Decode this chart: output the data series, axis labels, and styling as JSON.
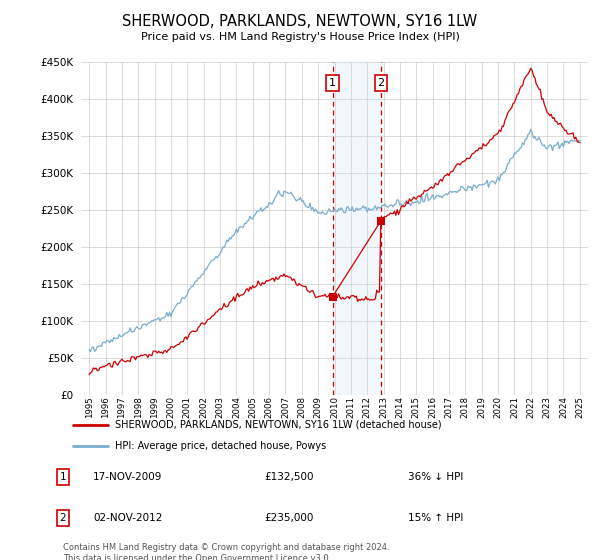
{
  "title": "SHERWOOD, PARKLANDS, NEWTOWN, SY16 1LW",
  "subtitle": "Price paid vs. HM Land Registry's House Price Index (HPI)",
  "legend_line1": "SHERWOOD, PARKLANDS, NEWTOWN, SY16 1LW (detached house)",
  "legend_line2": "HPI: Average price, detached house, Powys",
  "annotation1_date": "17-NOV-2009",
  "annotation1_price": "£132,500",
  "annotation1_hpi": "36% ↓ HPI",
  "annotation2_date": "02-NOV-2012",
  "annotation2_price": "£235,000",
  "annotation2_hpi": "15% ↑ HPI",
  "footer": "Contains HM Land Registry data © Crown copyright and database right 2024.\nThis data is licensed under the Open Government Licence v3.0.",
  "red_color": "#cc0000",
  "blue_color": "#7aadcf",
  "shaded_color": "#cce0f0",
  "marker1_x": 2009.88,
  "marker2_x": 2012.84,
  "marker1_y": 132500,
  "marker2_y": 235000,
  "ylim_min": 0,
  "ylim_max": 450000,
  "xlim_min": 1994.5,
  "xlim_max": 2025.5,
  "yticks": [
    0,
    50000,
    100000,
    150000,
    200000,
    250000,
    300000,
    350000,
    400000,
    450000
  ],
  "xticks": [
    1995,
    1996,
    1997,
    1998,
    1999,
    2000,
    2001,
    2002,
    2003,
    2004,
    2005,
    2006,
    2007,
    2008,
    2009,
    2010,
    2011,
    2012,
    2013,
    2014,
    2015,
    2016,
    2017,
    2018,
    2019,
    2020,
    2021,
    2022,
    2023,
    2024,
    2025
  ]
}
